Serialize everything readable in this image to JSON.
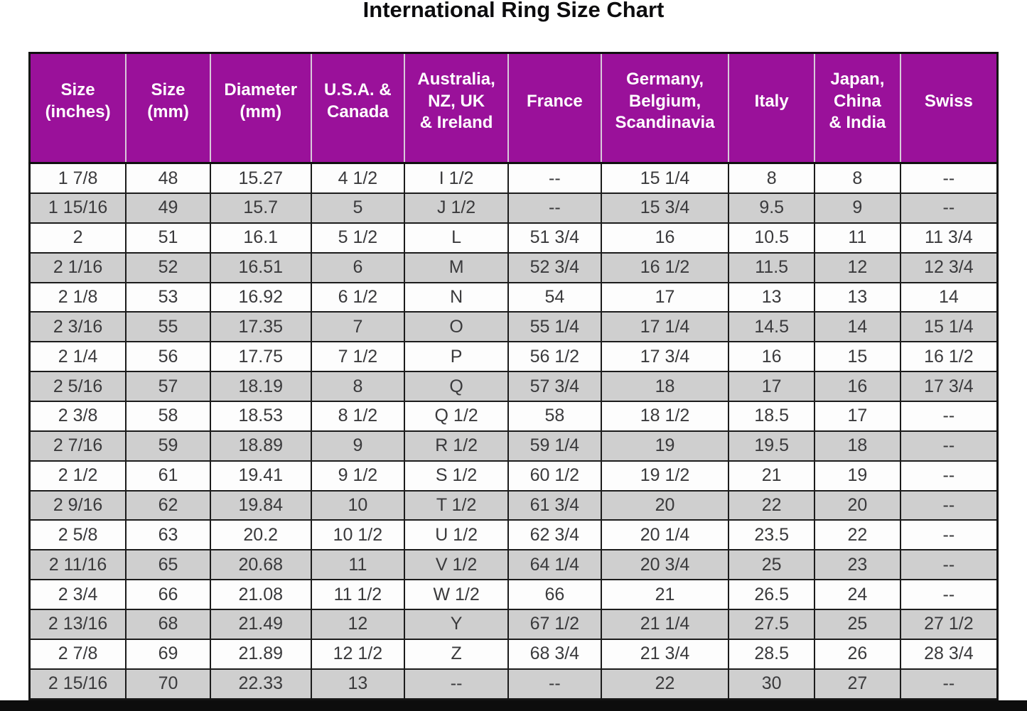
{
  "title": "International Ring Size Chart",
  "colors": {
    "header_bg": "#9A119A",
    "header_text": "#ffffff",
    "row_odd_bg": "#fdfdfd",
    "row_even_bg": "#cfcfcf",
    "grid_line": "#1c1c1c",
    "cell_text": "#3a3a3c",
    "bottom_bar": "#0d0d0d"
  },
  "chart_data": {
    "type": "table",
    "title": "International Ring Size Chart",
    "columns": [
      "Size\n(inches)",
      "Size\n(mm)",
      "Diameter\n(mm)",
      "U.S.A. &\nCanada",
      "Australia,\nNZ, UK\n& Ireland",
      "France",
      "Germany,\nBelgium,\nScandinavia",
      "Italy",
      "Japan,\nChina\n& India",
      "Swiss"
    ],
    "rows": [
      [
        "1 7/8",
        "48",
        "15.27",
        "4 1/2",
        "I 1/2",
        "--",
        "15 1/4",
        "8",
        "8",
        "--"
      ],
      [
        "1 15/16",
        "49",
        "15.7",
        "5",
        "J 1/2",
        "--",
        "15 3/4",
        "9.5",
        "9",
        "--"
      ],
      [
        "2",
        "51",
        "16.1",
        "5 1/2",
        "L",
        "51 3/4",
        "16",
        "10.5",
        "11",
        "11 3/4"
      ],
      [
        "2 1/16",
        "52",
        "16.51",
        "6",
        "M",
        "52 3/4",
        "16 1/2",
        "11.5",
        "12",
        "12 3/4"
      ],
      [
        "2 1/8",
        "53",
        "16.92",
        "6 1/2",
        "N",
        "54",
        "17",
        "13",
        "13",
        "14"
      ],
      [
        "2 3/16",
        "55",
        "17.35",
        "7",
        "O",
        "55 1/4",
        "17 1/4",
        "14.5",
        "14",
        "15 1/4"
      ],
      [
        "2 1/4",
        "56",
        "17.75",
        "7 1/2",
        "P",
        "56 1/2",
        "17 3/4",
        "16",
        "15",
        "16 1/2"
      ],
      [
        "2 5/16",
        "57",
        "18.19",
        "8",
        "Q",
        "57 3/4",
        "18",
        "17",
        "16",
        "17 3/4"
      ],
      [
        "2 3/8",
        "58",
        "18.53",
        "8 1/2",
        "Q 1/2",
        "58",
        "18 1/2",
        "18.5",
        "17",
        "--"
      ],
      [
        "2 7/16",
        "59",
        "18.89",
        "9",
        "R 1/2",
        "59 1/4",
        "19",
        "19.5",
        "18",
        "--"
      ],
      [
        "2 1/2",
        "61",
        "19.41",
        "9 1/2",
        "S 1/2",
        "60 1/2",
        "19 1/2",
        "21",
        "19",
        "--"
      ],
      [
        "2 9/16",
        "62",
        "19.84",
        "10",
        "T 1/2",
        "61 3/4",
        "20",
        "22",
        "20",
        "--"
      ],
      [
        "2 5/8",
        "63",
        "20.2",
        "10 1/2",
        "U 1/2",
        "62 3/4",
        "20 1/4",
        "23.5",
        "22",
        "--"
      ],
      [
        "2 11/16",
        "65",
        "20.68",
        "11",
        "V 1/2",
        "64 1/4",
        "20 3/4",
        "25",
        "23",
        "--"
      ],
      [
        "2 3/4",
        "66",
        "21.08",
        "11 1/2",
        "W 1/2",
        "66",
        "21",
        "26.5",
        "24",
        "--"
      ],
      [
        "2 13/16",
        "68",
        "21.49",
        "12",
        "Y",
        "67 1/2",
        "21 1/4",
        "27.5",
        "25",
        "27 1/2"
      ],
      [
        "2 7/8",
        "69",
        "21.89",
        "12 1/2",
        "Z",
        "68 3/4",
        "21 3/4",
        "28.5",
        "26",
        "28 3/4"
      ],
      [
        "2 15/16",
        "70",
        "22.33",
        "13",
        "--",
        "--",
        "22",
        "30",
        "27",
        "--"
      ]
    ],
    "column_width_percents": [
      9.96,
      8.72,
      10.4,
      9.67,
      10.7,
      9.6,
      13.19,
      8.86,
      8.86,
      10.04
    ],
    "layout": {
      "header_style": "purple background, white bold text",
      "row_striping": "alternating white / light gray starting with white",
      "grid": "on"
    }
  }
}
